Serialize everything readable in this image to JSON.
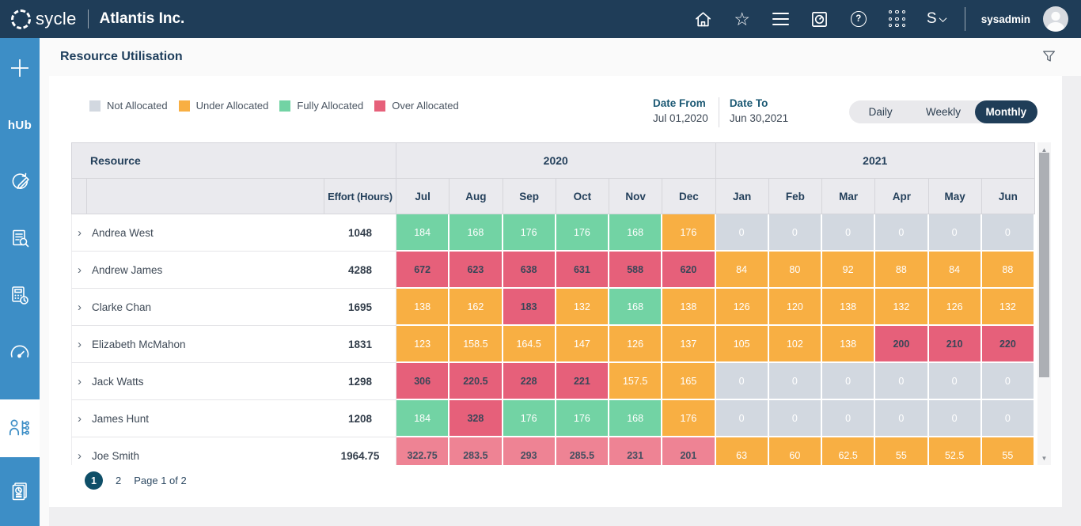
{
  "topbar": {
    "brand": "sycle",
    "company": "Atlantis Inc.",
    "username": "sysadmin",
    "icons": [
      "home",
      "favorites-star",
      "menu",
      "dashboard",
      "help",
      "apps-grid",
      "s-dropdown",
      "avatar"
    ]
  },
  "sidebar": {
    "hub_label": "hUb",
    "items": [
      "add",
      "hub",
      "plan-edit",
      "document-search",
      "calculator-time",
      "gauge",
      "resource-utilisation",
      "reports"
    ],
    "active_item": "resource-utilisation"
  },
  "page": {
    "title": "Resource Utilisation"
  },
  "controls": {
    "legend": [
      {
        "label": "Not Allocated",
        "color": "#D2D8E0",
        "status": "not"
      },
      {
        "label": "Under Allocated",
        "color": "#F8AF43",
        "status": "under"
      },
      {
        "label": "Fully Allocated",
        "color": "#72D3A4",
        "status": "fully"
      },
      {
        "label": "Over Allocated",
        "color": "#E6607A",
        "status": "over"
      }
    ],
    "date_from": {
      "label": "Date From",
      "value": "Jul 01,2020"
    },
    "date_to": {
      "label": "Date To",
      "value": "Jun 30,2021"
    },
    "views": {
      "options": [
        "Daily",
        "Weekly",
        "Monthly"
      ],
      "active": "Monthly"
    }
  },
  "table": {
    "resource_header": "Resource",
    "effort_header": "Effort (Hours)",
    "year_groups": [
      {
        "label": "2020",
        "months": [
          "Jul",
          "Aug",
          "Sep",
          "Oct",
          "Nov",
          "Dec"
        ]
      },
      {
        "label": "2021",
        "months": [
          "Jan",
          "Feb",
          "Mar",
          "Apr",
          "May",
          "Jun"
        ]
      }
    ],
    "status_colors": {
      "not_allocated": "#D2D8E0",
      "under_allocated": "#F8AF43",
      "fully_allocated": "#72D3A4",
      "over_allocated": "#E6607A",
      "over_allocated_partial_row": "#EE8394"
    },
    "rows": [
      {
        "name": "Andrea West",
        "effort": "1048",
        "cells": [
          {
            "v": "184",
            "s": "fully"
          },
          {
            "v": "168",
            "s": "fully"
          },
          {
            "v": "176",
            "s": "fully"
          },
          {
            "v": "176",
            "s": "fully"
          },
          {
            "v": "168",
            "s": "fully"
          },
          {
            "v": "176",
            "s": "under"
          },
          {
            "v": "0",
            "s": "not"
          },
          {
            "v": "0",
            "s": "not"
          },
          {
            "v": "0",
            "s": "not"
          },
          {
            "v": "0",
            "s": "not"
          },
          {
            "v": "0",
            "s": "not"
          },
          {
            "v": "0",
            "s": "not"
          }
        ]
      },
      {
        "name": "Andrew James",
        "effort": "4288",
        "cells": [
          {
            "v": "672",
            "s": "over"
          },
          {
            "v": "623",
            "s": "over"
          },
          {
            "v": "638",
            "s": "over"
          },
          {
            "v": "631",
            "s": "over"
          },
          {
            "v": "588",
            "s": "over"
          },
          {
            "v": "620",
            "s": "over"
          },
          {
            "v": "84",
            "s": "under"
          },
          {
            "v": "80",
            "s": "under"
          },
          {
            "v": "92",
            "s": "under"
          },
          {
            "v": "88",
            "s": "under"
          },
          {
            "v": "84",
            "s": "under"
          },
          {
            "v": "88",
            "s": "under"
          }
        ]
      },
      {
        "name": "Clarke Chan",
        "effort": "1695",
        "cells": [
          {
            "v": "138",
            "s": "under"
          },
          {
            "v": "162",
            "s": "under"
          },
          {
            "v": "183",
            "s": "over"
          },
          {
            "v": "132",
            "s": "under"
          },
          {
            "v": "168",
            "s": "fully"
          },
          {
            "v": "138",
            "s": "under"
          },
          {
            "v": "126",
            "s": "under"
          },
          {
            "v": "120",
            "s": "under"
          },
          {
            "v": "138",
            "s": "under"
          },
          {
            "v": "132",
            "s": "under"
          },
          {
            "v": "126",
            "s": "under"
          },
          {
            "v": "132",
            "s": "under"
          }
        ]
      },
      {
        "name": "Elizabeth McMahon",
        "effort": "1831",
        "cells": [
          {
            "v": "123",
            "s": "under"
          },
          {
            "v": "158.5",
            "s": "under"
          },
          {
            "v": "164.5",
            "s": "under"
          },
          {
            "v": "147",
            "s": "under"
          },
          {
            "v": "126",
            "s": "under"
          },
          {
            "v": "137",
            "s": "under"
          },
          {
            "v": "105",
            "s": "under"
          },
          {
            "v": "102",
            "s": "under"
          },
          {
            "v": "138",
            "s": "under"
          },
          {
            "v": "200",
            "s": "over"
          },
          {
            "v": "210",
            "s": "over"
          },
          {
            "v": "220",
            "s": "over"
          }
        ]
      },
      {
        "name": "Jack Watts",
        "effort": "1298",
        "cells": [
          {
            "v": "306",
            "s": "over"
          },
          {
            "v": "220.5",
            "s": "over"
          },
          {
            "v": "228",
            "s": "over"
          },
          {
            "v": "221",
            "s": "over"
          },
          {
            "v": "157.5",
            "s": "under"
          },
          {
            "v": "165",
            "s": "under"
          },
          {
            "v": "0",
            "s": "not"
          },
          {
            "v": "0",
            "s": "not"
          },
          {
            "v": "0",
            "s": "not"
          },
          {
            "v": "0",
            "s": "not"
          },
          {
            "v": "0",
            "s": "not"
          },
          {
            "v": "0",
            "s": "not"
          }
        ]
      },
      {
        "name": "James Hunt",
        "effort": "1208",
        "cells": [
          {
            "v": "184",
            "s": "fully"
          },
          {
            "v": "328",
            "s": "over"
          },
          {
            "v": "176",
            "s": "fully"
          },
          {
            "v": "176",
            "s": "fully"
          },
          {
            "v": "168",
            "s": "fully"
          },
          {
            "v": "176",
            "s": "under"
          },
          {
            "v": "0",
            "s": "not"
          },
          {
            "v": "0",
            "s": "not"
          },
          {
            "v": "0",
            "s": "not"
          },
          {
            "v": "0",
            "s": "not"
          },
          {
            "v": "0",
            "s": "not"
          },
          {
            "v": "0",
            "s": "not"
          }
        ]
      },
      {
        "name": "Joe Smith",
        "effort": "1964.75",
        "cells": [
          {
            "v": "322.75",
            "s": "over_light"
          },
          {
            "v": "283.5",
            "s": "over_light"
          },
          {
            "v": "293",
            "s": "over_light"
          },
          {
            "v": "285.5",
            "s": "over_light"
          },
          {
            "v": "231",
            "s": "over_light"
          },
          {
            "v": "201",
            "s": "over_light"
          },
          {
            "v": "63",
            "s": "under"
          },
          {
            "v": "60",
            "s": "under"
          },
          {
            "v": "62.5",
            "s": "under"
          },
          {
            "v": "55",
            "s": "under"
          },
          {
            "v": "52.5",
            "s": "under"
          },
          {
            "v": "55",
            "s": "under"
          }
        ]
      }
    ]
  },
  "pagination": {
    "pages": [
      "1",
      "2"
    ],
    "current": "1",
    "label": "Page 1 of 2"
  }
}
